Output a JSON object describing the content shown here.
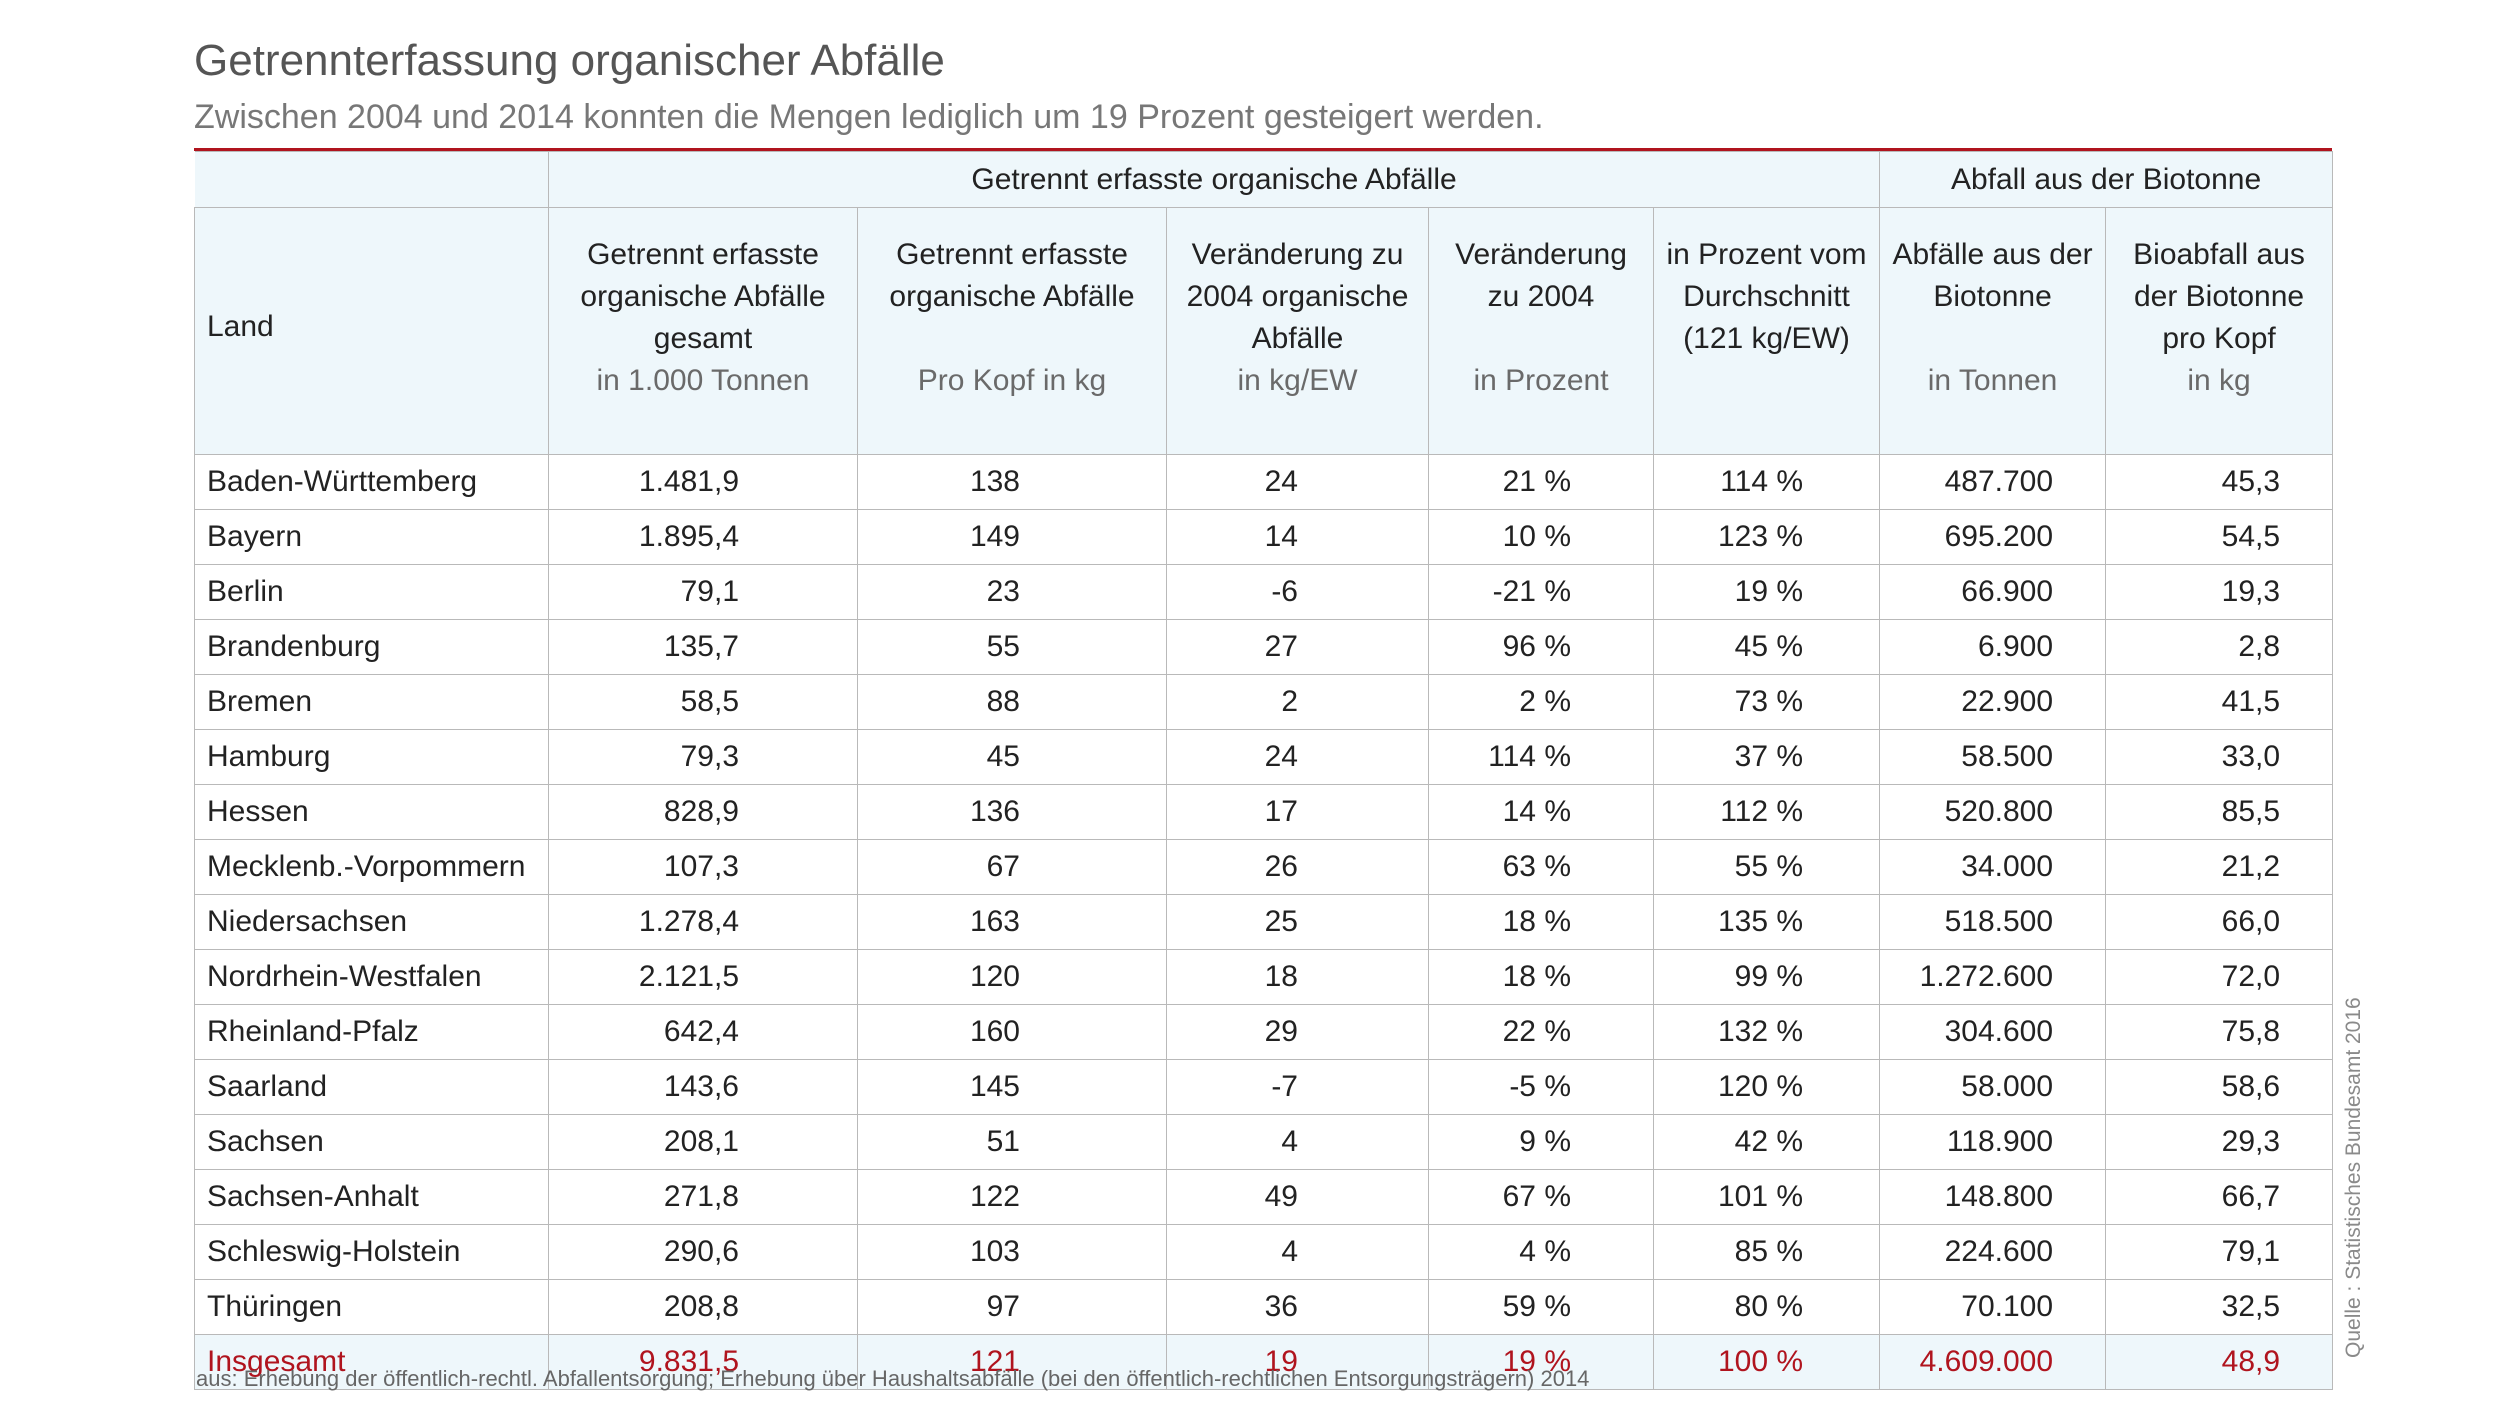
{
  "title": "Getrennterfassung organischer Abfälle",
  "subtitle": "Zwischen 2004 und 2014 konnten die Mengen lediglich um 19 Prozent gesteigert werden.",
  "groups": {
    "organic": "Getrennt erfasste organische Abfälle",
    "biotonne": "Abfall aus der Biotonne"
  },
  "columns": {
    "land": "Land",
    "c2": {
      "l1": "Getrennt erfasste",
      "l2": "organische Abfälle",
      "l3": "gesamt",
      "unit": "in 1.000 Tonnen"
    },
    "c3": {
      "l1": "Getrennt erfasste",
      "l2": "organische Abfälle",
      "unit": "Pro Kopf in kg"
    },
    "c4": {
      "l1": "Veränderung zu",
      "l2": "2004 organische",
      "l3": "Abfälle",
      "unit": "in kg/EW"
    },
    "c5": {
      "l1": "Veränderung",
      "l2": "zu 2004",
      "unit": "in Prozent"
    },
    "c6": {
      "l1": "in Prozent vom",
      "l2": "Durchschnitt",
      "l3": "(121 kg/EW)"
    },
    "c7": {
      "l1": "Abfälle aus der",
      "l2": "Biotonne",
      "unit": "in Tonnen"
    },
    "c8": {
      "l1": "Bioabfall aus",
      "l2": "der Biotonne",
      "l3": "pro Kopf",
      "unit": "in kg"
    }
  },
  "rows": [
    [
      "Baden-Württemberg",
      "1.481,9",
      "138",
      "24",
      "21 %",
      "114 %",
      "487.700",
      "45,3"
    ],
    [
      "Bayern",
      "1.895,4",
      "149",
      "14",
      "10 %",
      "123 %",
      "695.200",
      "54,5"
    ],
    [
      "Berlin",
      "79,1",
      "23",
      "-6",
      "-21 %",
      "19 %",
      "66.900",
      "19,3"
    ],
    [
      "Brandenburg",
      "135,7",
      "55",
      "27",
      "96 %",
      "45 %",
      "6.900",
      "2,8"
    ],
    [
      "Bremen",
      "58,5",
      "88",
      "2",
      "2 %",
      "73 %",
      "22.900",
      "41,5"
    ],
    [
      "Hamburg",
      "79,3",
      "45",
      "24",
      "114 %",
      "37 %",
      "58.500",
      "33,0"
    ],
    [
      "Hessen",
      "828,9",
      "136",
      "17",
      "14 %",
      "112 %",
      "520.800",
      "85,5"
    ],
    [
      "Mecklenb.-Vorpommern",
      "107,3",
      "67",
      "26",
      "63 %",
      "55 %",
      "34.000",
      "21,2"
    ],
    [
      "Niedersachsen",
      "1.278,4",
      "163",
      "25",
      "18 %",
      "135 %",
      "518.500",
      "66,0"
    ],
    [
      "Nordrhein-Westfalen",
      "2.121,5",
      "120",
      "18",
      "18 %",
      "99 %",
      "1.272.600",
      "72,0"
    ],
    [
      "Rheinland-Pfalz",
      "642,4",
      "160",
      "29",
      "22 %",
      "132 %",
      "304.600",
      "75,8"
    ],
    [
      "Saarland",
      "143,6",
      "145",
      "-7",
      "-5 %",
      "120 %",
      "58.000",
      "58,6"
    ],
    [
      "Sachsen",
      "208,1",
      "51",
      "4",
      "9 %",
      "42 %",
      "118.900",
      "29,3"
    ],
    [
      "Sachsen-Anhalt",
      "271,8",
      "122",
      "49",
      "67 %",
      "101 %",
      "148.800",
      "66,7"
    ],
    [
      "Schleswig-Holstein",
      "290,6",
      "103",
      "4",
      "4 %",
      "85 %",
      "224.600",
      "79,1"
    ],
    [
      "Thüringen",
      "208,8",
      "97",
      "36",
      "59 %",
      "80 %",
      "70.100",
      "32,5"
    ]
  ],
  "total": [
    "Insgesamt",
    "9.831,5",
    "121",
    "19",
    "19 %",
    "100 %",
    "4.609.000",
    "48,9"
  ],
  "footnote": "aus: Erhebung der öffentlich-rechtl. Abfallentsorgung; Erhebung über Haushaltsabfälle (bei den öffentlich-rechtlichen Entsorgungsträgern) 2014",
  "source": "Quelle : Statistisches Bundesamt 2016",
  "colors": {
    "accent": "#b0141e",
    "header_bg": "#eef7fb",
    "grid": "#b9b9b9"
  }
}
